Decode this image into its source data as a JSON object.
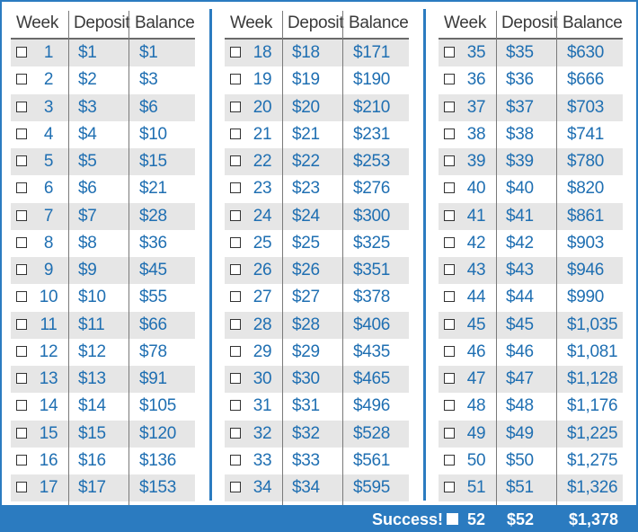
{
  "headers": {
    "week": "Week",
    "deposit": "Deposit",
    "balance": "Balance"
  },
  "columns": [
    {
      "rows": [
        {
          "week": "1",
          "deposit": "$1",
          "balance": "$1"
        },
        {
          "week": "2",
          "deposit": "$2",
          "balance": "$3"
        },
        {
          "week": "3",
          "deposit": "$3",
          "balance": "$6"
        },
        {
          "week": "4",
          "deposit": "$4",
          "balance": "$10"
        },
        {
          "week": "5",
          "deposit": "$5",
          "balance": "$15"
        },
        {
          "week": "6",
          "deposit": "$6",
          "balance": "$21"
        },
        {
          "week": "7",
          "deposit": "$7",
          "balance": "$28"
        },
        {
          "week": "8",
          "deposit": "$8",
          "balance": "$36"
        },
        {
          "week": "9",
          "deposit": "$9",
          "balance": "$45"
        },
        {
          "week": "10",
          "deposit": "$10",
          "balance": "$55"
        },
        {
          "week": "11",
          "deposit": "$11",
          "balance": "$66"
        },
        {
          "week": "12",
          "deposit": "$12",
          "balance": "$78"
        },
        {
          "week": "13",
          "deposit": "$13",
          "balance": "$91"
        },
        {
          "week": "14",
          "deposit": "$14",
          "balance": "$105"
        },
        {
          "week": "15",
          "deposit": "$15",
          "balance": "$120"
        },
        {
          "week": "16",
          "deposit": "$16",
          "balance": "$136"
        },
        {
          "week": "17",
          "deposit": "$17",
          "balance": "$153"
        }
      ]
    },
    {
      "rows": [
        {
          "week": "18",
          "deposit": "$18",
          "balance": "$171"
        },
        {
          "week": "19",
          "deposit": "$19",
          "balance": "$190"
        },
        {
          "week": "20",
          "deposit": "$20",
          "balance": "$210"
        },
        {
          "week": "21",
          "deposit": "$21",
          "balance": "$231"
        },
        {
          "week": "22",
          "deposit": "$22",
          "balance": "$253"
        },
        {
          "week": "23",
          "deposit": "$23",
          "balance": "$276"
        },
        {
          "week": "24",
          "deposit": "$24",
          "balance": "$300"
        },
        {
          "week": "25",
          "deposit": "$25",
          "balance": "$325"
        },
        {
          "week": "26",
          "deposit": "$26",
          "balance": "$351"
        },
        {
          "week": "27",
          "deposit": "$27",
          "balance": "$378"
        },
        {
          "week": "28",
          "deposit": "$28",
          "balance": "$406"
        },
        {
          "week": "29",
          "deposit": "$29",
          "balance": "$435"
        },
        {
          "week": "30",
          "deposit": "$30",
          "balance": "$465"
        },
        {
          "week": "31",
          "deposit": "$31",
          "balance": "$496"
        },
        {
          "week": "32",
          "deposit": "$32",
          "balance": "$528"
        },
        {
          "week": "33",
          "deposit": "$33",
          "balance": "$561"
        },
        {
          "week": "34",
          "deposit": "$34",
          "balance": "$595"
        }
      ]
    },
    {
      "rows": [
        {
          "week": "35",
          "deposit": "$35",
          "balance": "$630"
        },
        {
          "week": "36",
          "deposit": "$36",
          "balance": "$666"
        },
        {
          "week": "37",
          "deposit": "$37",
          "balance": "$703"
        },
        {
          "week": "38",
          "deposit": "$38",
          "balance": "$741"
        },
        {
          "week": "39",
          "deposit": "$39",
          "balance": "$780"
        },
        {
          "week": "40",
          "deposit": "$40",
          "balance": "$820"
        },
        {
          "week": "41",
          "deposit": "$41",
          "balance": "$861"
        },
        {
          "week": "42",
          "deposit": "$42",
          "balance": "$903"
        },
        {
          "week": "43",
          "deposit": "$43",
          "balance": "$946"
        },
        {
          "week": "44",
          "deposit": "$44",
          "balance": "$990"
        },
        {
          "week": "45",
          "deposit": "$45",
          "balance": "$1,035"
        },
        {
          "week": "46",
          "deposit": "$46",
          "balance": "$1,081"
        },
        {
          "week": "47",
          "deposit": "$47",
          "balance": "$1,128"
        },
        {
          "week": "48",
          "deposit": "$48",
          "balance": "$1,176"
        },
        {
          "week": "49",
          "deposit": "$49",
          "balance": "$1,225"
        },
        {
          "week": "50",
          "deposit": "$50",
          "balance": "$1,275"
        },
        {
          "week": "51",
          "deposit": "$51",
          "balance": "$1,326"
        }
      ]
    }
  ],
  "footer": {
    "label": "Success!",
    "week": "52",
    "deposit": "$52",
    "balance": "$1,378"
  },
  "colors": {
    "accent": "#2b7bc0",
    "value_text": "#1f6fb2",
    "row_shade": "#e6e6e6"
  }
}
